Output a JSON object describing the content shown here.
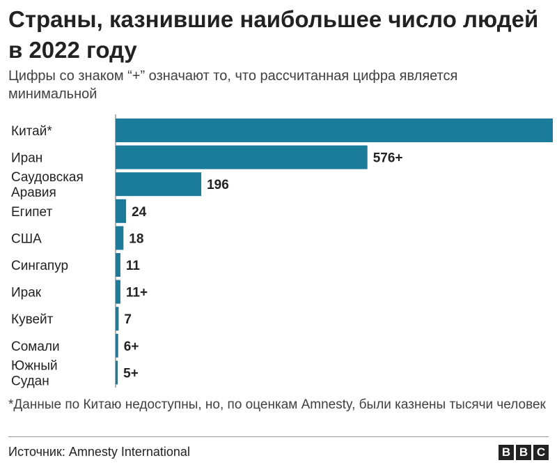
{
  "title": "Страны, казнившие наибольшее число людей в 2022 году",
  "subtitle": "Цифры со знаком “+” означают то, что рассчитанная цифра является минимальной",
  "footnote": "*Данные по Китаю недоступны, но, по оценкам Amnesty, были казнены тысячи человек",
  "source": "Источник: Amnesty International",
  "logo": [
    "B",
    "B",
    "C"
  ],
  "colors": {
    "bar": "#1a7b9b",
    "axis": "#666666"
  },
  "chart_data": {
    "type": "bar",
    "orientation": "horizontal",
    "categories": [
      [
        "Китай*"
      ],
      [
        "Иран"
      ],
      [
        "Саудовская",
        "Аравия"
      ],
      [
        "Египет"
      ],
      [
        "США"
      ],
      [
        "Сингапур"
      ],
      [
        "Ирак"
      ],
      [
        "Кувейт"
      ],
      [
        "Сомали"
      ],
      [
        "Южный",
        "Судан"
      ]
    ],
    "values": [
      1000,
      576,
      196,
      24,
      18,
      11,
      11,
      7,
      6,
      5
    ],
    "value_labels": [
      "",
      "576+",
      "196",
      "24",
      "18",
      "11",
      "11+",
      "7",
      "6+",
      "5+"
    ],
    "xlim": [
      0,
      1000
    ],
    "grid": false
  }
}
